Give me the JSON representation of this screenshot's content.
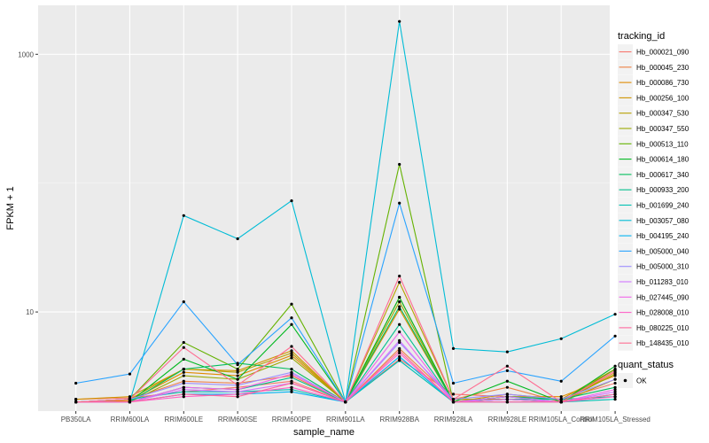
{
  "chart_data": {
    "type": "line",
    "xlabel": "sample_name",
    "ylabel": "FPKM + 1",
    "y_scale": "log10",
    "ylim": [
      1.7,
      2400
    ],
    "y_ticks": [
      10,
      1000
    ],
    "grid": true,
    "legend_position": "right",
    "categories": [
      "PB350LA",
      "RRIM600LA",
      "RRIM600LE",
      "RRIM600SE",
      "RRIM600PE",
      "RRIM901LA",
      "RRIM928BA",
      "RRIM928LA",
      "RRIM928LE",
      "RRIM105LA_Control",
      "RRIM105LA_Stressed"
    ],
    "series_legend_title": "tracking_id",
    "series": [
      {
        "name": "Hb_000021_090",
        "color": "#F8766D",
        "values": [
          2.1,
          2.15,
          2.4,
          2.6,
          2.9,
          2.0,
          4.3,
          2.3,
          2.2,
          2.1,
          2.8
        ]
      },
      {
        "name": "Hb_000045_230",
        "color": "#EE8043",
        "values": [
          2.0,
          2.1,
          2.9,
          2.8,
          3.2,
          2.0,
          5.2,
          2.1,
          2.6,
          2.0,
          3.4
        ]
      },
      {
        "name": "Hb_000086_730",
        "color": "#E08B00",
        "values": [
          2.0,
          2.05,
          3.4,
          3.2,
          4.6,
          2.0,
          10.5,
          2.0,
          2.2,
          2.2,
          3.2
        ]
      },
      {
        "name": "Hb_000256_100",
        "color": "#CF9400",
        "values": [
          2.1,
          2.2,
          3.6,
          3.5,
          5.0,
          2.0,
          13.0,
          2.0,
          2.3,
          2.1,
          3.6
        ]
      },
      {
        "name": "Hb_000347_530",
        "color": "#B79F00",
        "values": [
          2.0,
          2.1,
          3.6,
          3.4,
          4.8,
          2.0,
          17.0,
          2.1,
          2.1,
          2.0,
          3.0
        ]
      },
      {
        "name": "Hb_000347_550",
        "color": "#9AA800",
        "values": [
          2.0,
          2.0,
          3.2,
          3.0,
          4.4,
          2.0,
          12.0,
          2.0,
          2.1,
          2.0,
          3.3
        ]
      },
      {
        "name": "Hb_000513_110",
        "color": "#64B200",
        "values": [
          2.0,
          2.1,
          5.8,
          3.6,
          11.5,
          2.0,
          140.0,
          2.0,
          2.2,
          2.0,
          3.6
        ]
      },
      {
        "name": "Hb_000614_180",
        "color": "#00B81F",
        "values": [
          2.0,
          2.0,
          4.3,
          3.0,
          8.0,
          2.0,
          13.0,
          2.0,
          2.9,
          2.0,
          3.8
        ]
      },
      {
        "name": "Hb_000617_340",
        "color": "#00BD5C",
        "values": [
          2.0,
          2.0,
          3.6,
          4.0,
          3.6,
          2.0,
          11.0,
          2.0,
          2.2,
          2.1,
          2.6
        ]
      },
      {
        "name": "Hb_000933_200",
        "color": "#00C08D",
        "values": [
          2.0,
          2.0,
          2.6,
          2.5,
          3.1,
          2.0,
          8.0,
          2.0,
          2.1,
          2.1,
          2.2
        ]
      },
      {
        "name": "Hb_001699_240",
        "color": "#00C1B2",
        "values": [
          2.0,
          2.1,
          2.4,
          2.4,
          2.5,
          2.0,
          4.2,
          2.0,
          2.0,
          2.0,
          2.1
        ]
      },
      {
        "name": "Hb_003057_080",
        "color": "#00BCD6",
        "values": [
          2.0,
          2.0,
          56.0,
          37.0,
          73.0,
          2.0,
          1800.0,
          5.2,
          4.9,
          6.2,
          9.6
        ]
      },
      {
        "name": "Hb_004195_240",
        "color": "#00B3F2",
        "values": [
          2.0,
          2.0,
          2.3,
          2.3,
          2.4,
          2.0,
          4.5,
          2.0,
          2.1,
          2.0,
          2.3
        ]
      },
      {
        "name": "Hb_005000_040",
        "color": "#29A3FF",
        "values": [
          2.8,
          3.3,
          12.0,
          3.9,
          9.0,
          2.0,
          70.0,
          2.8,
          3.5,
          2.9,
          6.5
        ]
      },
      {
        "name": "Hb_005000_310",
        "color": "#9C8DFF",
        "values": [
          2.0,
          2.1,
          2.8,
          2.7,
          3.4,
          2.0,
          5.8,
          2.1,
          2.3,
          2.1,
          3.0
        ]
      },
      {
        "name": "Hb_011283_010",
        "color": "#D277FF",
        "values": [
          2.0,
          2.0,
          2.5,
          2.4,
          2.8,
          2.0,
          6.0,
          2.0,
          2.2,
          2.0,
          2.4
        ]
      },
      {
        "name": "Hb_027445_090",
        "color": "#F166E8",
        "values": [
          2.0,
          2.0,
          2.6,
          2.5,
          3.3,
          2.0,
          7.0,
          2.0,
          2.1,
          2.0,
          2.5
        ]
      },
      {
        "name": "Hb_028008_010",
        "color": "#FF61C7",
        "values": [
          2.0,
          2.0,
          2.2,
          2.3,
          2.6,
          2.0,
          4.8,
          2.0,
          2.0,
          2.0,
          2.2
        ]
      },
      {
        "name": "Hb_080225_010",
        "color": "#FF689E",
        "values": [
          2.0,
          2.0,
          2.3,
          2.2,
          2.8,
          2.0,
          5.0,
          2.0,
          2.0,
          2.0,
          2.3
        ]
      },
      {
        "name": "Hb_148435_010",
        "color": "#FF6C91",
        "values": [
          2.0,
          2.1,
          5.3,
          2.7,
          5.4,
          2.0,
          19.0,
          2.1,
          3.8,
          2.0,
          3.5
        ]
      }
    ],
    "shape_legend_title": "quant_status",
    "shape_legend_items": [
      "OK"
    ]
  }
}
